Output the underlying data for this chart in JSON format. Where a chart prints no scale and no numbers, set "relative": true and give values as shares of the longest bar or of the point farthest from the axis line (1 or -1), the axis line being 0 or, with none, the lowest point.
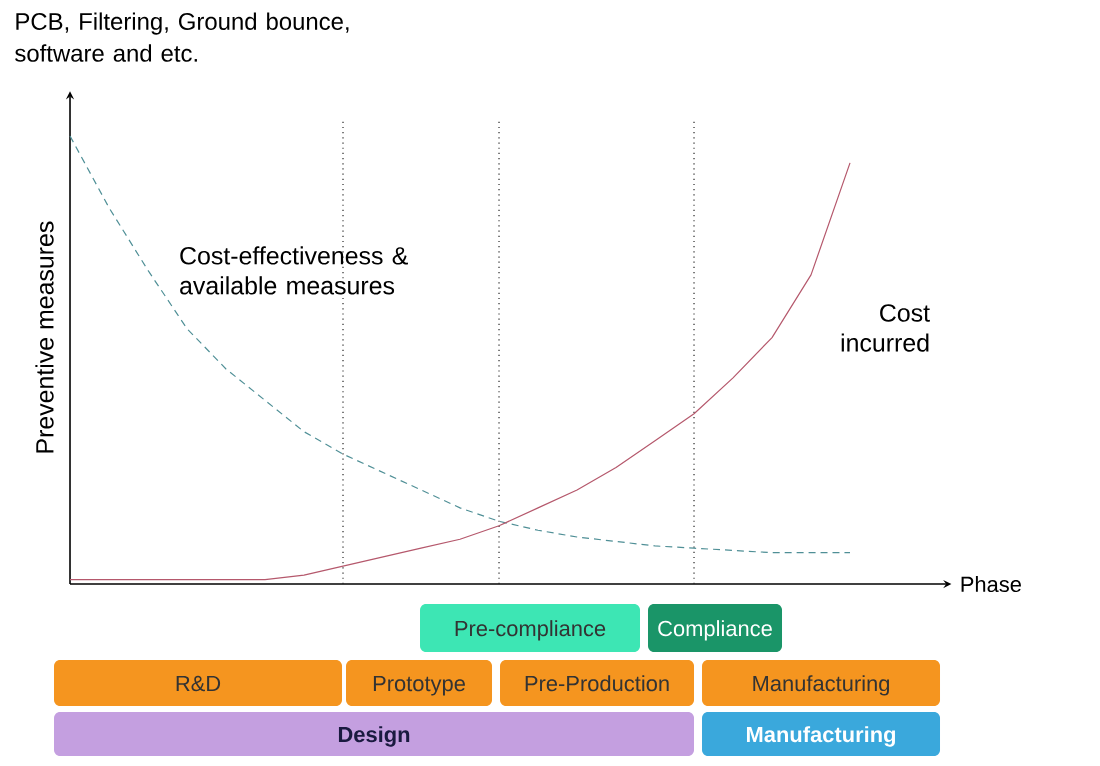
{
  "chart_data": {
    "type": "line",
    "relative": true,
    "title": "PCB, Filtering, Ground bounce, software and etc.",
    "xlabel": "Phase",
    "ylabel": "Preventive measures",
    "legend": false,
    "marker": "none",
    "grid": "x",
    "categories": [
      null,
      null,
      null,
      null,
      null,
      null,
      null,
      null,
      null,
      null,
      null,
      null,
      null,
      null,
      null,
      null,
      null,
      null,
      null,
      null,
      null
    ],
    "series": [
      {
        "name": "Cost-effectiveness & available measures",
        "color": "#4f8f96",
        "line_style": "dashed",
        "values": [
          1,
          0.84,
          0.7,
          0.57,
          0.48,
          0.41,
          0.34,
          0.29,
          0.25,
          0.21,
          0.17,
          0.14,
          0.12,
          0.105,
          0.095,
          0.085,
          0.08,
          0.075,
          0.07,
          0.07,
          0.07
        ]
      },
      {
        "name": "Cost incurred",
        "color": "#b5586c",
        "line_style": "solid",
        "values": [
          0.01,
          0.01,
          0.01,
          0.01,
          0.01,
          0.01,
          0.02,
          0.04,
          0.06,
          0.08,
          0.1,
          0.13,
          0.17,
          0.21,
          0.26,
          0.32,
          0.38,
          0.46,
          0.55,
          0.69,
          0.94
        ]
      }
    ],
    "annotations": [
      "Pre-compliance",
      "Compliance",
      "R&D",
      "Prototype",
      "Pre-Production",
      "Manufacturing",
      "Design",
      "Manufacturing"
    ]
  }
}
